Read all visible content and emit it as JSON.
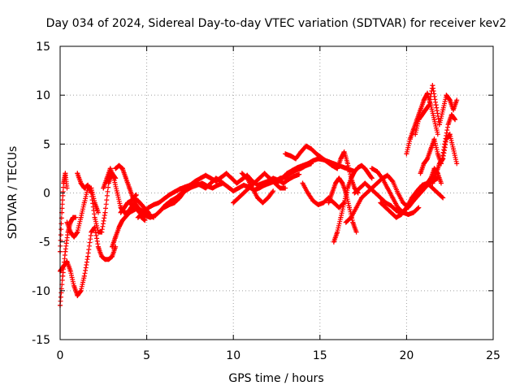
{
  "chart_data": {
    "type": "scatter",
    "title": "Day 034 of 2024, Sidereal Day-to-day VTEC variation (SDTVAR) for receiver kev2",
    "xlabel": "GPS time / hours",
    "ylabel": "SDTVAR / TECUs",
    "xlim": [
      0,
      25
    ],
    "ylim": [
      -15,
      15
    ],
    "xticks": [
      0,
      5,
      10,
      15,
      20,
      25
    ],
    "yticks": [
      -15,
      -10,
      -5,
      0,
      5,
      10,
      15
    ],
    "grid": true,
    "marker": "+",
    "color": "#ff0000",
    "series": [
      {
        "name": "t1",
        "x": [
          0.0,
          0.2,
          0.4,
          0.6,
          0.8,
          1.0,
          1.2,
          1.4,
          1.6,
          1.8,
          2.0,
          2.2,
          2.4,
          2.6,
          2.8,
          3.0,
          3.2
        ],
        "y": [
          -8.0,
          -7.5,
          -7.0,
          -8.0,
          -9.5,
          -10.5,
          -10.0,
          -8.5,
          -6.5,
          -4.0,
          -3.5,
          -5.5,
          -6.5,
          -6.8,
          -6.8,
          -6.5,
          -5.5
        ]
      },
      {
        "name": "t2",
        "x": [
          0.0,
          0.15,
          0.3,
          0.45,
          0.6,
          0.75,
          0.9
        ],
        "y": [
          -11.5,
          -8.5,
          -6.0,
          -4.0,
          -3.0,
          -2.5,
          -2.5
        ]
      },
      {
        "name": "t3",
        "x": [
          0.0,
          0.1,
          0.2,
          0.3,
          0.4
        ],
        "y": [
          -6.0,
          -2.0,
          1.0,
          2.0,
          0.5
        ]
      },
      {
        "name": "t4",
        "x": [
          0.4,
          0.6,
          0.8,
          1.0,
          1.2,
          1.4,
          1.6,
          1.8,
          2.0,
          2.2
        ],
        "y": [
          -3.0,
          -4.0,
          -4.5,
          -4.0,
          -2.5,
          -1.0,
          0.5,
          0.5,
          -1.0,
          -2.0
        ]
      },
      {
        "name": "t5",
        "x": [
          1.0,
          1.2,
          1.4,
          1.6,
          1.8,
          2.0,
          2.2,
          2.4,
          2.6,
          2.8,
          3.0,
          3.2
        ],
        "y": [
          2.0,
          1.0,
          0.5,
          0.8,
          0.0,
          -2.5,
          -4.0,
          -4.0,
          -2.0,
          1.0,
          2.0,
          1.5
        ]
      },
      {
        "name": "t6",
        "x": [
          2.5,
          2.7,
          2.9,
          3.1,
          3.3,
          3.5,
          3.7,
          3.9,
          4.1,
          4.3,
          4.5,
          4.7,
          4.9
        ],
        "y": [
          0.5,
          1.5,
          2.5,
          1.5,
          0.0,
          -1.5,
          -2.0,
          -2.0,
          -1.5,
          -1.0,
          -1.5,
          -2.5,
          -2.8
        ]
      },
      {
        "name": "t7",
        "x": [
          3.0,
          3.2,
          3.4,
          3.6,
          3.8,
          4.0,
          4.2,
          4.4,
          4.6,
          4.8,
          5.0,
          5.2,
          5.4
        ],
        "y": [
          -5.5,
          -4.5,
          -3.5,
          -2.8,
          -2.4,
          -2.0,
          -1.8,
          -1.6,
          -1.7,
          -1.9,
          -2.1,
          -2.3,
          -2.5
        ]
      },
      {
        "name": "t8",
        "x": [
          3.2,
          3.4,
          3.6,
          3.8,
          4.0,
          4.2,
          4.4
        ],
        "y": [
          2.5,
          2.8,
          2.5,
          1.5,
          0.5,
          -0.5,
          -0.2
        ]
      },
      {
        "name": "t9",
        "x": [
          3.5,
          3.7,
          3.9,
          4.1,
          4.3,
          4.5,
          4.7,
          4.9,
          5.1
        ],
        "y": [
          -2.0,
          -1.5,
          -1.0,
          -0.8,
          -0.6,
          -0.8,
          -1.2,
          -1.6,
          -2.0
        ]
      },
      {
        "name": "t10",
        "x": [
          4.0,
          4.3,
          4.6,
          4.9,
          5.2,
          5.5,
          5.8,
          6.1,
          6.4,
          6.7,
          7.0,
          7.3,
          7.6,
          7.9,
          8.2,
          8.5,
          8.8,
          9.1,
          9.4,
          9.7,
          10.0,
          10.3,
          10.6,
          10.9,
          11.2,
          11.5,
          11.8,
          12.1,
          12.4,
          12.7,
          13.0,
          13.3,
          13.6,
          13.9,
          14.2,
          14.5
        ],
        "y": [
          -1.0,
          -1.5,
          -2.0,
          -2.3,
          -2.5,
          -2.3,
          -1.8,
          -1.2,
          -0.8,
          -0.5,
          0.0,
          0.3,
          0.6,
          0.8,
          1.0,
          0.7,
          0.5,
          0.8,
          1.0,
          0.6,
          0.2,
          0.5,
          0.8,
          0.6,
          0.3,
          0.5,
          0.8,
          1.0,
          1.2,
          1.5,
          1.6,
          2.0,
          2.3,
          2.5,
          2.8,
          3.0
        ]
      },
      {
        "name": "t11",
        "x": [
          4.5,
          4.8,
          5.1,
          5.4,
          5.7,
          6.0,
          6.3,
          6.6,
          6.9,
          7.2,
          7.5,
          7.8,
          8.1,
          8.4,
          8.7,
          9.0,
          9.3,
          9.6,
          9.9,
          10.2,
          10.5,
          10.8,
          11.1,
          11.4,
          11.7,
          12.0,
          12.3,
          12.6,
          12.9,
          13.2,
          13.5,
          13.8
        ],
        "y": [
          -2.5,
          -2.0,
          -1.5,
          -1.2,
          -1.0,
          -0.6,
          -0.2,
          0.1,
          0.4,
          0.6,
          0.8,
          1.2,
          1.5,
          1.8,
          1.5,
          1.2,
          1.6,
          2.0,
          1.5,
          1.0,
          1.4,
          1.8,
          1.2,
          0.8,
          1.0,
          1.2,
          1.5,
          1.3,
          1.0,
          1.4,
          1.7,
          1.9
        ]
      },
      {
        "name": "t12",
        "x": [
          6.0,
          6.3,
          6.6,
          6.9,
          7.2,
          7.5,
          7.8,
          8.1,
          8.4,
          8.7,
          9.0,
          9.3
        ],
        "y": [
          -1.5,
          -1.2,
          -1.0,
          -0.5,
          0.2,
          0.8,
          1.0,
          0.8,
          0.5,
          1.0,
          1.5,
          1.2
        ]
      },
      {
        "name": "t13",
        "x": [
          10.0,
          10.3,
          10.6,
          10.9,
          11.2,
          11.5,
          11.8,
          12.1,
          12.4,
          12.7,
          13.0
        ],
        "y": [
          -1.0,
          -0.5,
          0.0,
          0.5,
          1.0,
          1.5,
          2.0,
          1.5,
          1.0,
          0.5,
          0.5
        ]
      },
      {
        "name": "t14",
        "x": [
          10.5,
          10.8,
          11.1,
          11.4,
          11.7,
          12.0,
          12.3
        ],
        "y": [
          2.0,
          1.5,
          0.5,
          -0.5,
          -1.0,
          -0.5,
          0.2
        ]
      },
      {
        "name": "t15",
        "x": [
          12.5,
          12.8,
          13.1,
          13.4,
          13.7,
          14.0,
          14.3,
          14.6,
          14.9,
          15.2,
          15.5,
          15.8,
          16.1,
          16.4,
          16.7,
          17.0
        ],
        "y": [
          1.0,
          1.5,
          2.0,
          2.3,
          2.6,
          2.8,
          3.0,
          3.3,
          3.5,
          3.4,
          3.2,
          3.0,
          2.8,
          2.6,
          2.4,
          2.2
        ]
      },
      {
        "name": "t16",
        "x": [
          13.0,
          13.3,
          13.6,
          13.9,
          14.2,
          14.5,
          14.8,
          15.1,
          15.4,
          15.7,
          16.0
        ],
        "y": [
          4.0,
          3.8,
          3.5,
          4.2,
          4.8,
          4.5,
          4.0,
          3.6,
          3.2,
          2.8,
          2.5
        ]
      },
      {
        "name": "t17",
        "x": [
          14.0,
          14.3,
          14.6,
          14.9,
          15.2,
          15.5,
          15.8,
          16.1,
          16.4
        ],
        "y": [
          1.0,
          0.0,
          -0.8,
          -1.2,
          -1.0,
          -0.5,
          -1.0,
          -1.5,
          -1.0
        ]
      },
      {
        "name": "t18",
        "x": [
          15.5,
          15.7,
          15.9,
          16.1,
          16.3,
          16.5,
          16.7,
          16.9,
          17.1
        ],
        "y": [
          -1.0,
          0.0,
          1.0,
          1.5,
          1.0,
          0.0,
          -1.5,
          -3.0,
          -4.0
        ]
      },
      {
        "name": "t19",
        "x": [
          15.8,
          16.0,
          16.2,
          16.4,
          16.6,
          16.8,
          17.0,
          17.2,
          17.4,
          17.6,
          17.8,
          18.0
        ],
        "y": [
          -5.0,
          -4.0,
          -2.5,
          -1.0,
          0.5,
          1.5,
          2.2,
          2.6,
          2.8,
          2.5,
          2.0,
          1.5
        ]
      },
      {
        "name": "t20",
        "x": [
          16.0,
          16.2,
          16.4,
          16.6,
          16.8,
          17.0,
          17.2
        ],
        "y": [
          2.5,
          3.5,
          4.2,
          3.0,
          1.5,
          0.5,
          0.0
        ]
      },
      {
        "name": "t21",
        "x": [
          16.5,
          16.8,
          17.1,
          17.4,
          17.7,
          18.0,
          18.3,
          18.6,
          18.9,
          19.2,
          19.5,
          19.8,
          20.1,
          20.4,
          20.7,
          21.0
        ],
        "y": [
          -3.0,
          -2.5,
          -1.5,
          -0.5,
          0.0,
          0.5,
          1.0,
          1.5,
          1.8,
          1.2,
          0.0,
          -1.0,
          -1.5,
          -0.8,
          0.0,
          0.5
        ]
      },
      {
        "name": "t22",
        "x": [
          17.0,
          17.3,
          17.6,
          17.9,
          18.2,
          18.5,
          18.8,
          19.1,
          19.4,
          19.7,
          20.0,
          20.3,
          20.6,
          20.9,
          21.2,
          21.5,
          21.8
        ],
        "y": [
          0.0,
          0.5,
          1.0,
          0.5,
          0.0,
          -0.5,
          -1.0,
          -1.3,
          -1.8,
          -2.0,
          -1.6,
          -1.0,
          -0.4,
          0.2,
          0.8,
          1.2,
          1.5
        ]
      },
      {
        "name": "t23",
        "x": [
          18.0,
          18.3,
          18.6,
          18.9,
          19.2,
          19.5,
          19.8,
          20.1,
          20.4,
          20.7
        ],
        "y": [
          2.5,
          2.2,
          1.5,
          0.5,
          -0.5,
          -1.5,
          -2.0,
          -2.2,
          -2.0,
          -1.5
        ]
      },
      {
        "name": "t24",
        "x": [
          18.5,
          18.8,
          19.1,
          19.4,
          19.7,
          20.0,
          20.3,
          20.6,
          20.9,
          21.2,
          21.5,
          21.8,
          22.1
        ],
        "y": [
          -1.0,
          -1.5,
          -2.0,
          -2.5,
          -2.2,
          -1.5,
          -0.5,
          0.2,
          0.8,
          1.0,
          0.5,
          0.0,
          -0.5
        ]
      },
      {
        "name": "t25",
        "x": [
          20.0,
          20.2,
          20.4,
          20.6,
          20.8,
          21.0,
          21.2,
          21.4,
          21.6,
          21.8
        ],
        "y": [
          4.0,
          5.5,
          6.5,
          7.5,
          8.5,
          9.5,
          10.2,
          9.0,
          7.5,
          6.0
        ]
      },
      {
        "name": "t26",
        "x": [
          20.5,
          20.7,
          20.9,
          21.1,
          21.3,
          21.5,
          21.7,
          21.9,
          22.1,
          22.3,
          22.5,
          22.7,
          22.9
        ],
        "y": [
          6.0,
          7.5,
          8.0,
          8.5,
          9.0,
          11.0,
          9.0,
          7.0,
          8.5,
          10.0,
          9.5,
          8.5,
          9.5
        ]
      },
      {
        "name": "t27",
        "x": [
          20.8,
          21.0,
          21.2,
          21.4,
          21.6,
          21.8,
          22.0,
          22.2,
          22.4,
          22.6,
          22.8
        ],
        "y": [
          2.0,
          3.0,
          3.5,
          4.5,
          5.5,
          4.0,
          3.0,
          5.0,
          7.0,
          8.0,
          7.5
        ]
      },
      {
        "name": "t28",
        "x": [
          21.5,
          21.7,
          21.9,
          22.1,
          22.3,
          22.5,
          22.7,
          22.9
        ],
        "y": [
          1.0,
          2.0,
          3.0,
          3.5,
          5.5,
          6.0,
          4.5,
          3.0
        ]
      },
      {
        "name": "t29",
        "x": [
          21.0,
          21.2,
          21.4,
          21.6,
          21.8,
          22.0
        ],
        "y": [
          0.5,
          1.0,
          1.5,
          2.5,
          2.0,
          1.0
        ]
      }
    ]
  }
}
